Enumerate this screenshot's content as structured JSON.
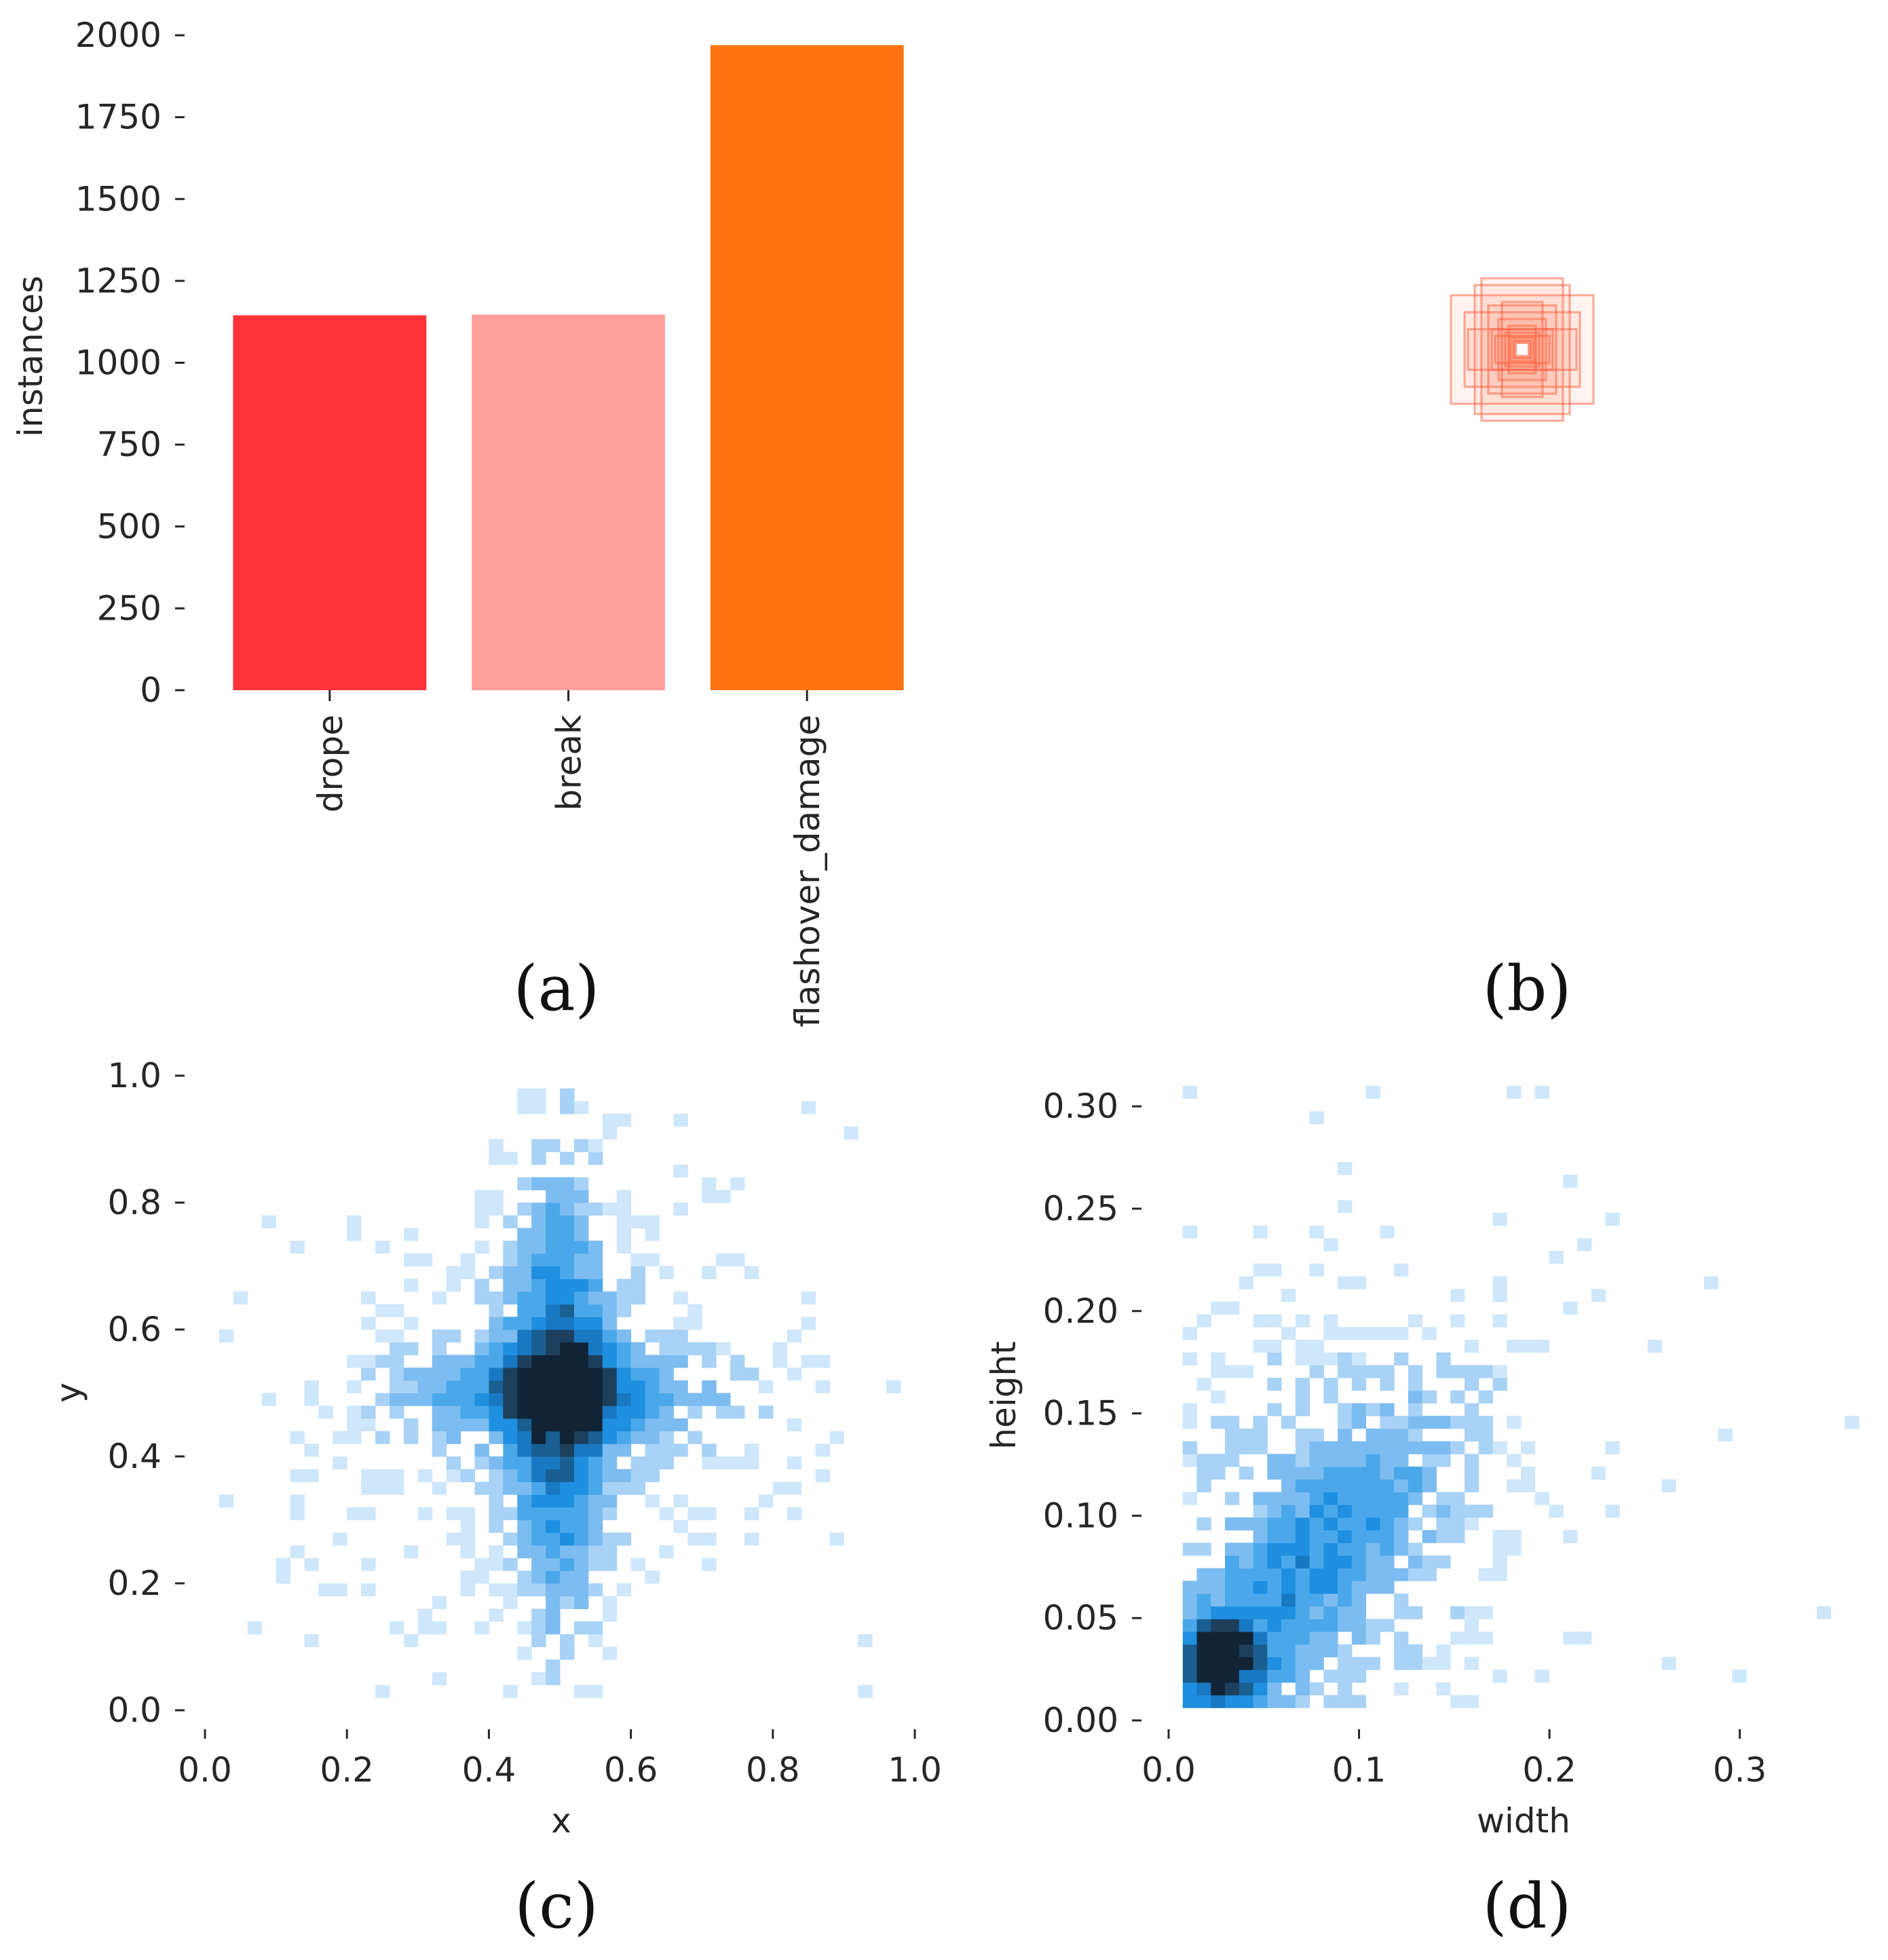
{
  "colors": {
    "text": "#262626",
    "heat_scale": [
      "#cfe7fb",
      "#a8d2f6",
      "#7dbcf0",
      "#4aa8ea",
      "#1f8fe0",
      "#1978c2",
      "#1a5f91",
      "#1c3f5c",
      "#112436"
    ],
    "box_stroke": "#ff5533",
    "box_fill": "#ff7755"
  },
  "chart_data": [
    {
      "id": "a",
      "panel_label": "(a)",
      "type": "bar",
      "ylabel": "instances",
      "ylim": [
        0,
        2000
      ],
      "yticks": [
        "0",
        "250",
        "500",
        "750",
        "1000",
        "1250",
        "1500",
        "1750",
        "2000"
      ],
      "categories": [
        "drope",
        "break",
        "flashover_damage"
      ],
      "values": [
        1145,
        1147,
        1970
      ],
      "bar_colors": [
        "#ff3338",
        "#ff9f9a",
        "#ff7410"
      ]
    },
    {
      "id": "b",
      "panel_label": "(b)",
      "type": "other",
      "description_free": true,
      "box_sizes": [
        [
          0.21,
          0.16
        ],
        [
          0.12,
          0.21
        ],
        [
          0.17,
          0.11
        ],
        [
          0.07,
          0.09
        ],
        [
          0.09,
          0.06
        ],
        [
          0.05,
          0.05
        ],
        [
          0.035,
          0.035
        ],
        [
          0.14,
          0.19
        ],
        [
          0.1,
          0.13
        ],
        [
          0.16,
          0.06
        ],
        [
          0.06,
          0.14
        ],
        [
          0.025,
          0.025
        ],
        [
          0.04,
          0.07
        ],
        [
          0.08,
          0.04
        ]
      ]
    },
    {
      "id": "c",
      "panel_label": "(c)",
      "type": "heatmap",
      "xlabel": "x",
      "ylabel": "y",
      "xlim": [
        0.0,
        1.0
      ],
      "ylim": [
        0.0,
        1.0
      ],
      "xticks": [
        "0.0",
        "0.2",
        "0.4",
        "0.6",
        "0.8",
        "1.0"
      ],
      "yticks": [
        "0.0",
        "0.2",
        "0.4",
        "0.6",
        "0.8",
        "1.0"
      ],
      "bins": 50,
      "center": [
        0.5,
        0.5
      ],
      "extent": [
        0.02,
        0.98
      ]
    },
    {
      "id": "d",
      "panel_label": "(d)",
      "type": "heatmap",
      "xlabel": "width",
      "ylabel": "height",
      "xlim": [
        0.0,
        0.37
      ],
      "ylim": [
        0.0,
        0.31
      ],
      "xticks": [
        "0.0",
        "0.1",
        "0.2",
        "0.3"
      ],
      "yticks": [
        "0.00",
        "0.05",
        "0.10",
        "0.15",
        "0.20",
        "0.25",
        "0.30"
      ],
      "bins": 50,
      "peak": [
        0.028,
        0.03
      ]
    }
  ]
}
